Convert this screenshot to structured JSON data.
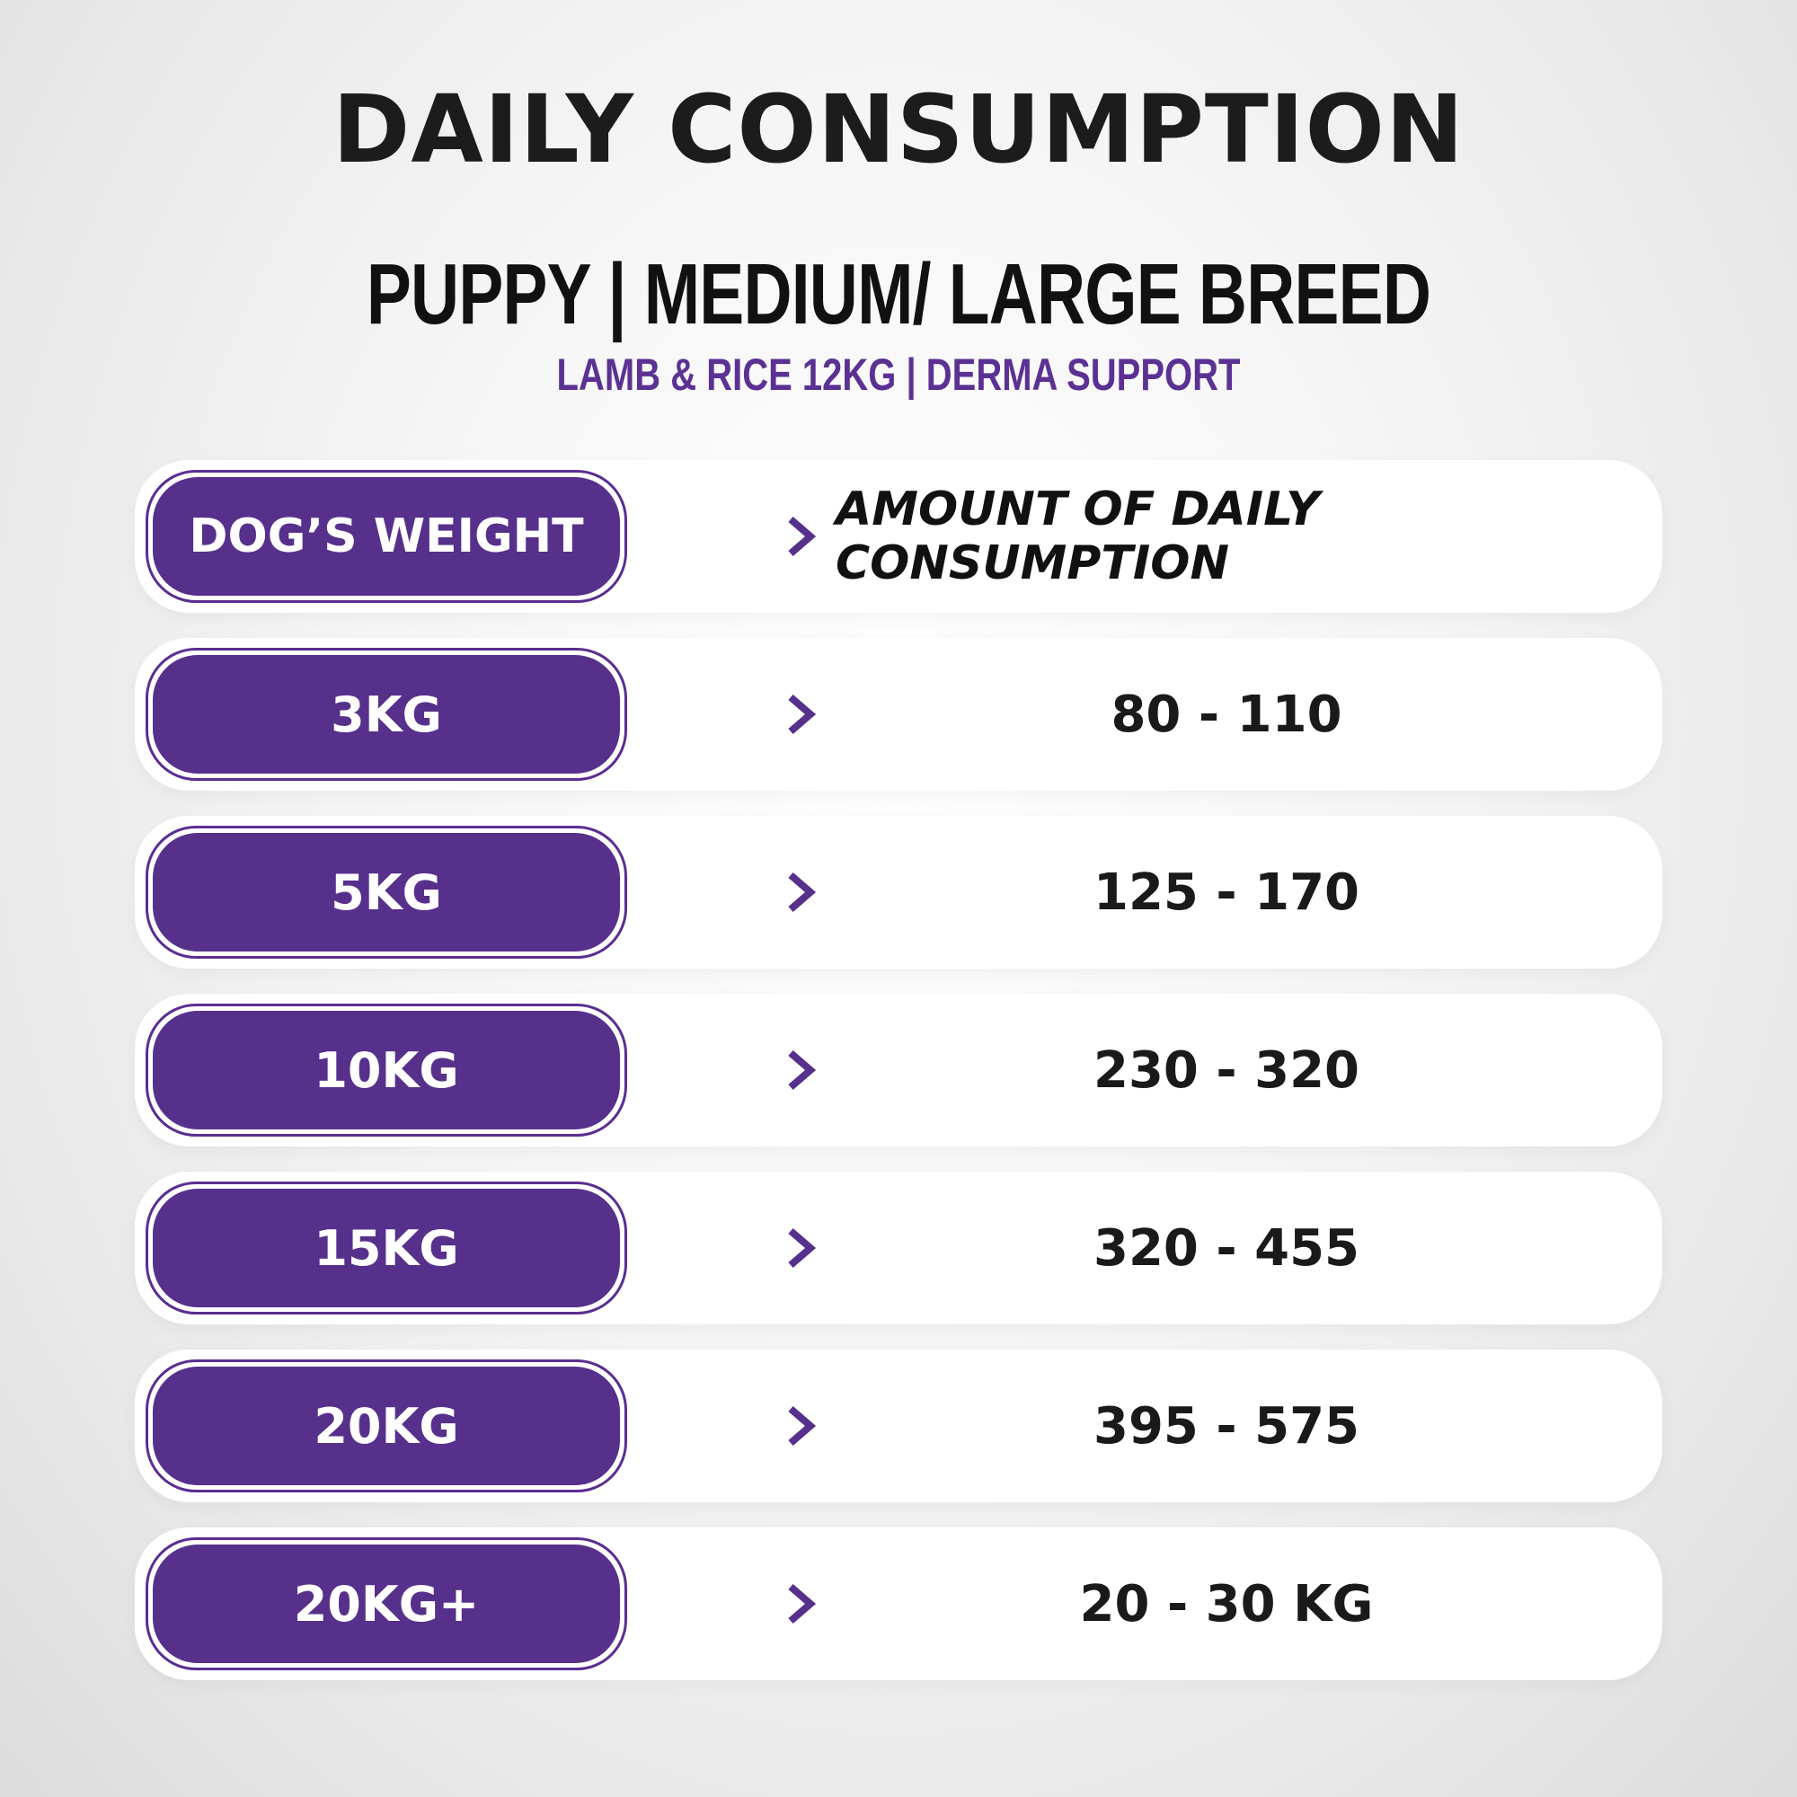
{
  "title": "DAILY CONSUMPTION",
  "subtitle": "PUPPY | MEDIUM/ LARGE BREED",
  "product_line": "LAMB & RICE 12KG | DERMA SUPPORT",
  "colors": {
    "accent": "#57308c",
    "text": "#1a1a1a",
    "row_bg": "#ffffff"
  },
  "table": {
    "header": {
      "weight": "DOG’S WEIGHT",
      "amount": "AMOUNT OF DAILY CONSUMPTION"
    },
    "rows": [
      {
        "weight": "3KG",
        "amount": "80 - 110"
      },
      {
        "weight": "5KG",
        "amount": "125 - 170"
      },
      {
        "weight": "10KG",
        "amount": "230 - 320"
      },
      {
        "weight": "15KG",
        "amount": "320 - 455"
      },
      {
        "weight": "20KG",
        "amount": "395 - 575"
      },
      {
        "weight": "20KG+",
        "amount": "20 - 30 KG"
      }
    ]
  },
  "icons": {
    "row_marker": "chevron-right-icon"
  }
}
